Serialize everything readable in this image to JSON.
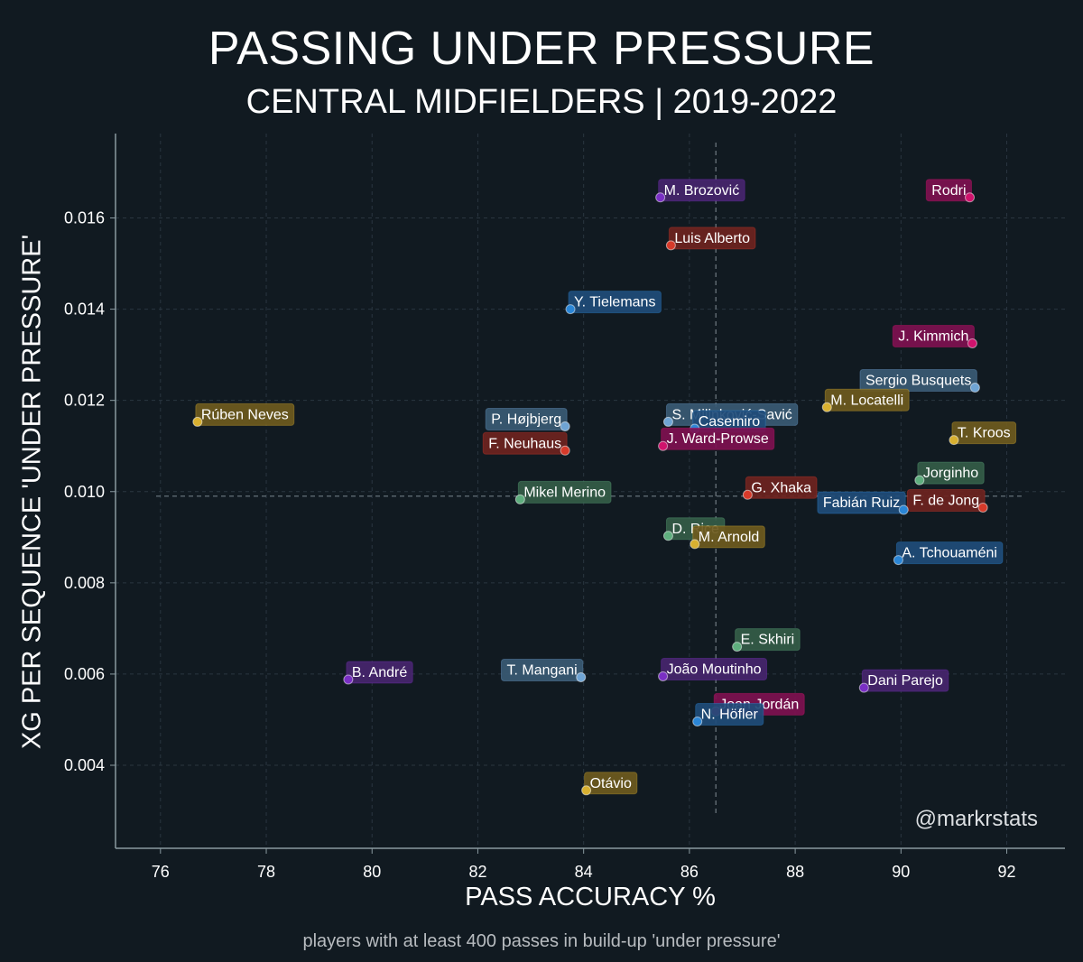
{
  "title": "PASSING UNDER PRESSURE",
  "subtitle": "CENTRAL MIDFIELDERS | 2019-2022",
  "footnote": "players with at least 400 passes in build-up 'under pressure'",
  "watermark": "@markrstats",
  "colors": {
    "background": "#111a21",
    "grid": "#2a3640",
    "axis": "#8a9aa0",
    "mean_line": "#6f7b82"
  },
  "chart_data": {
    "type": "scatter",
    "title": "PASSING UNDER PRESSURE",
    "subtitle": "CENTRAL MIDFIELDERS | 2019-2022",
    "xlabel": "PASS ACCURACY %",
    "ylabel": "XG PER SEQUENCE 'UNDER PRESSURE'",
    "xlim": [
      75.15,
      93.1
    ],
    "ylim": [
      0.00218,
      0.01785
    ],
    "xticks": [
      "76",
      "78",
      "80",
      "82",
      "84",
      "86",
      "88",
      "90",
      "92"
    ],
    "yticks": [
      "0.004",
      "0.006",
      "0.008",
      "0.010",
      "0.012",
      "0.014",
      "0.016"
    ],
    "grid": true,
    "reference_lines": {
      "x": 86.5,
      "y": 0.0099
    },
    "points": [
      {
        "name": "Rodri",
        "x": 91.3,
        "y": 0.01645,
        "color": "#d0136d",
        "box": "#7e1050",
        "anchor": "right"
      },
      {
        "name": "M. Brozović",
        "x": 85.45,
        "y": 0.01645,
        "color": "#7a2fc4",
        "box": "#46256e",
        "anchor": "left"
      },
      {
        "name": "Luis Alberto",
        "x": 85.65,
        "y": 0.0154,
        "color": "#d63a2a",
        "box": "#6e2320",
        "anchor": "left"
      },
      {
        "name": "Y. Tielemans",
        "x": 83.75,
        "y": 0.014,
        "color": "#2b86d6",
        "box": "#1f4c7a",
        "anchor": "left"
      },
      {
        "name": "J. Kimmich",
        "x": 91.35,
        "y": 0.01325,
        "color": "#d0136d",
        "box": "#7e1050",
        "anchor": "right"
      },
      {
        "name": "Sergio Busquets",
        "x": 91.4,
        "y": 0.01228,
        "color": "#6fa4d4",
        "box": "#3a5a74",
        "anchor": "right"
      },
      {
        "name": "M. Locatelli",
        "x": 88.6,
        "y": 0.01185,
        "color": "#d8b030",
        "box": "#6e5a1e",
        "anchor": "left"
      },
      {
        "name": "Rúben Neves",
        "x": 76.7,
        "y": 0.01153,
        "color": "#d8b030",
        "box": "#6e5a1e",
        "anchor": "left"
      },
      {
        "name": "P. Højbjerg",
        "x": 83.65,
        "y": 0.01143,
        "color": "#6fa4d4",
        "box": "#3a5a74",
        "anchor": "right"
      },
      {
        "name": "S. Milinković-Savić",
        "x": 85.6,
        "y": 0.01153,
        "color": "#6fa4d4",
        "box": "#3a5a74",
        "anchor": "left"
      },
      {
        "name": "Casemiro",
        "x": 86.1,
        "y": 0.01138,
        "color": "#2b86d6",
        "box": "#1f4c7a",
        "anchor": "left"
      },
      {
        "name": "T. Kroos",
        "x": 91.0,
        "y": 0.01113,
        "color": "#d8b030",
        "box": "#6e5a1e",
        "anchor": "left"
      },
      {
        "name": "F. Neuhaus",
        "x": 83.65,
        "y": 0.0109,
        "color": "#d63a2a",
        "box": "#6e2320",
        "anchor": "right"
      },
      {
        "name": "J. Ward-Prowse",
        "x": 85.5,
        "y": 0.011,
        "color": "#d0136d",
        "box": "#7e1050",
        "anchor": "left"
      },
      {
        "name": "Jorginho",
        "x": 90.35,
        "y": 0.01025,
        "color": "#5fae7e",
        "box": "#345c48",
        "anchor": "left"
      },
      {
        "name": "G. Xhaka",
        "x": 87.1,
        "y": 0.00993,
        "color": "#d63a2a",
        "box": "#6e2320",
        "anchor": "left"
      },
      {
        "name": "Mikel Merino",
        "x": 82.8,
        "y": 0.00983,
        "color": "#5fae7e",
        "box": "#345c48",
        "anchor": "left"
      },
      {
        "name": "F. de Jong",
        "x": 91.55,
        "y": 0.00965,
        "color": "#d63a2a",
        "box": "#6e2320",
        "anchor": "right"
      },
      {
        "name": "Fabián Ruiz",
        "x": 90.05,
        "y": 0.0096,
        "color": "#2b86d6",
        "box": "#1f4c7a",
        "anchor": "right"
      },
      {
        "name": "D. Rice",
        "x": 85.6,
        "y": 0.00903,
        "color": "#5fae7e",
        "box": "#345c48",
        "anchor": "left"
      },
      {
        "name": "M. Arnold",
        "x": 86.1,
        "y": 0.00885,
        "color": "#d8b030",
        "box": "#6e5a1e",
        "anchor": "left"
      },
      {
        "name": "A. Tchouaméni",
        "x": 89.95,
        "y": 0.0085,
        "color": "#2b86d6",
        "box": "#1f4c7a",
        "anchor": "left"
      },
      {
        "name": "E. Skhiri",
        "x": 86.9,
        "y": 0.0066,
        "color": "#5fae7e",
        "box": "#345c48",
        "anchor": "left"
      },
      {
        "name": "B. André",
        "x": 79.55,
        "y": 0.00588,
        "color": "#7a2fc4",
        "box": "#46256e",
        "anchor": "left"
      },
      {
        "name": "T. Mangani",
        "x": 83.95,
        "y": 0.00593,
        "color": "#6fa4d4",
        "box": "#3a5a74",
        "anchor": "right"
      },
      {
        "name": "João Moutinho",
        "x": 85.5,
        "y": 0.00595,
        "color": "#7a2fc4",
        "box": "#46256e",
        "anchor": "left"
      },
      {
        "name": "Dani Parejo",
        "x": 89.3,
        "y": 0.0057,
        "color": "#7a2fc4",
        "box": "#46256e",
        "anchor": "left"
      },
      {
        "name": "Joan Jordán",
        "x": 86.5,
        "y": 0.00518,
        "color": "#d0136d",
        "box": "#7e1050",
        "anchor": "left"
      },
      {
        "name": "N. Höfler",
        "x": 86.15,
        "y": 0.00496,
        "color": "#2b86d6",
        "box": "#1f4c7a",
        "anchor": "left"
      },
      {
        "name": "Otávio",
        "x": 84.05,
        "y": 0.00345,
        "color": "#d8b030",
        "box": "#6e5a1e",
        "anchor": "left"
      }
    ]
  }
}
